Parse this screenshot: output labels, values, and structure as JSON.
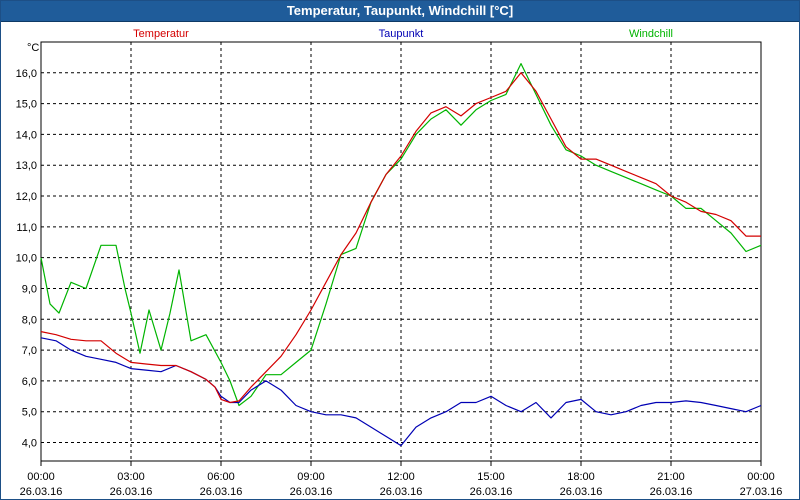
{
  "window": {
    "title": "Temperatur, Taupunkt, Windchill [°C]"
  },
  "colors": {
    "temperatur": "#d40000",
    "taupunkt": "#0000b4",
    "windchill": "#00b400",
    "titlebar": "#1f5c9a"
  },
  "chart_data": {
    "type": "line",
    "title": "Temperatur, Taupunkt, Windchill [°C]",
    "ylabel": "°C",
    "xlabel": "",
    "grid": true,
    "legend_placement": "top",
    "ylim": [
      3.4,
      17.0
    ],
    "xlim": [
      0,
      24
    ],
    "yticks": [
      4,
      5,
      6,
      7,
      8,
      9,
      10,
      11,
      12,
      13,
      14,
      15,
      16
    ],
    "ytick_labels": [
      "4,0",
      "5,0",
      "6,0",
      "7,0",
      "8,0",
      "9,0",
      "10,0",
      "11,0",
      "12,0",
      "13,0",
      "14,0",
      "15,0",
      "16,0"
    ],
    "xticks": [
      0,
      3,
      6,
      9,
      12,
      15,
      18,
      21,
      24
    ],
    "xtick_times": [
      "00:00",
      "03:00",
      "06:00",
      "09:00",
      "12:00",
      "15:00",
      "18:00",
      "21:00",
      "00:00"
    ],
    "xtick_dates": [
      "26.03.16",
      "26.03.16",
      "26.03.16",
      "26.03.16",
      "26.03.16",
      "26.03.16",
      "26.03.16",
      "26.03.16",
      "27.03.16"
    ],
    "series": [
      {
        "name": "Temperatur",
        "color": "#d40000",
        "x": [
          0,
          0.5,
          1,
          1.5,
          2,
          2.5,
          3,
          3.5,
          4,
          4.5,
          5,
          5.5,
          5.8,
          6,
          6.3,
          6.6,
          7,
          7.5,
          8,
          8.5,
          9,
          9.5,
          10,
          10.5,
          11,
          11.5,
          12,
          12.5,
          13,
          13.5,
          14,
          14.5,
          15,
          15.5,
          16,
          16.5,
          17,
          17.5,
          18,
          18.5,
          19,
          19.5,
          20,
          20.5,
          21,
          21.5,
          22,
          22.5,
          23,
          23.5,
          24
        ],
        "y": [
          7.6,
          7.5,
          7.35,
          7.3,
          7.3,
          6.9,
          6.6,
          6.55,
          6.5,
          6.5,
          6.3,
          6.05,
          5.8,
          5.4,
          5.3,
          5.35,
          5.8,
          6.3,
          6.8,
          7.5,
          8.3,
          9.2,
          10.1,
          10.8,
          11.8,
          12.7,
          13.3,
          14.1,
          14.7,
          14.9,
          14.6,
          15.0,
          15.2,
          15.4,
          16.0,
          15.4,
          14.5,
          13.6,
          13.2,
          13.2,
          13.0,
          12.8,
          12.6,
          12.4,
          12.0,
          11.8,
          11.5,
          11.4,
          11.2,
          10.7,
          10.7
        ]
      },
      {
        "name": "Taupunkt",
        "color": "#0000b4",
        "x": [
          0,
          0.5,
          1,
          1.5,
          2,
          2.5,
          3,
          3.5,
          4,
          4.5,
          5,
          5.5,
          5.8,
          6,
          6.3,
          6.6,
          7,
          7.5,
          8,
          8.5,
          9,
          9.5,
          10,
          10.5,
          11,
          11.5,
          12,
          12.5,
          13,
          13.5,
          14,
          14.5,
          15,
          15.5,
          16,
          16.5,
          17,
          17.5,
          18,
          18.5,
          19,
          19.5,
          20,
          20.5,
          21,
          21.5,
          22,
          22.5,
          23,
          23.5,
          24
        ],
        "y": [
          7.4,
          7.3,
          7.0,
          6.8,
          6.7,
          6.6,
          6.4,
          6.35,
          6.3,
          6.5,
          6.3,
          6.05,
          5.8,
          5.5,
          5.3,
          5.3,
          5.7,
          6.0,
          5.7,
          5.2,
          5.0,
          4.9,
          4.9,
          4.8,
          4.5,
          4.2,
          3.9,
          4.5,
          4.8,
          5.0,
          5.3,
          5.3,
          5.5,
          5.2,
          5.0,
          5.3,
          4.8,
          5.3,
          5.4,
          5.0,
          4.9,
          5.0,
          5.2,
          5.3,
          5.3,
          5.35,
          5.3,
          5.2,
          5.1,
          5.0,
          5.2
        ]
      },
      {
        "name": "Windchill",
        "color": "#00b400",
        "x": [
          0,
          0.3,
          0.6,
          1,
          1.5,
          2,
          2.5,
          2.8,
          3,
          3.3,
          3.6,
          4,
          4.3,
          4.6,
          5,
          5.5,
          6,
          6.3,
          6.6,
          7,
          7.5,
          8,
          8.5,
          9,
          9.5,
          10,
          10.5,
          11,
          11.5,
          12,
          12.5,
          13,
          13.5,
          14,
          14.5,
          15,
          15.5,
          16,
          16.5,
          17,
          17.5,
          18,
          18.5,
          19,
          19.5,
          20,
          20.5,
          21,
          21.5,
          22,
          22.5,
          23,
          23.5,
          24
        ],
        "y": [
          10.0,
          8.5,
          8.2,
          9.2,
          9.0,
          10.4,
          10.4,
          9.0,
          8.2,
          6.9,
          8.3,
          7.0,
          8.2,
          9.6,
          7.3,
          7.5,
          6.6,
          6.0,
          5.2,
          5.5,
          6.2,
          6.2,
          6.6,
          7.0,
          8.5,
          10.1,
          10.3,
          11.8,
          12.7,
          13.2,
          14.0,
          14.5,
          14.8,
          14.3,
          14.8,
          15.1,
          15.3,
          16.3,
          15.3,
          14.3,
          13.5,
          13.3,
          13.0,
          12.8,
          12.6,
          12.4,
          12.2,
          12.0,
          11.6,
          11.6,
          11.2,
          10.8,
          10.2,
          10.4
        ]
      }
    ]
  }
}
